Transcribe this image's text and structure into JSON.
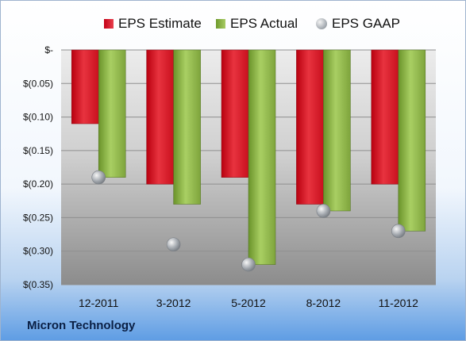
{
  "company": "Micron Technology",
  "legend": {
    "estimate": "EPS Estimate",
    "actual": "EPS Actual",
    "gaap": "EPS GAAP"
  },
  "colors": {
    "estimate": "#d9192a",
    "actual": "#8ab548",
    "gaap": "#a9aeb4",
    "plot_top": "#e8e8e8",
    "plot_bottom": "#8a8a8a"
  },
  "chart_data": {
    "type": "bar",
    "categories": [
      "12-2011",
      "3-2012",
      "5-2012",
      "8-2012",
      "11-2012"
    ],
    "series": [
      {
        "name": "EPS Estimate",
        "values": [
          -0.11,
          -0.2,
          -0.19,
          -0.23,
          -0.2
        ]
      },
      {
        "name": "EPS Actual",
        "values": [
          -0.19,
          -0.23,
          -0.32,
          -0.24,
          -0.27
        ]
      },
      {
        "name": "EPS GAAP",
        "values": [
          -0.19,
          -0.29,
          -0.32,
          -0.24,
          -0.27
        ]
      }
    ],
    "y_tick_values": [
      0,
      -0.05,
      -0.1,
      -0.15,
      -0.2,
      -0.25,
      -0.3,
      -0.35
    ],
    "y_tick_labels": [
      "$-",
      "$(0.05)",
      "$(0.10)",
      "$(0.15)",
      "$(0.20)",
      "$(0.25)",
      "$(0.30)",
      "$(0.35)"
    ],
    "ylim": [
      -0.35,
      0
    ],
    "grid": true,
    "legend_position": "top"
  }
}
